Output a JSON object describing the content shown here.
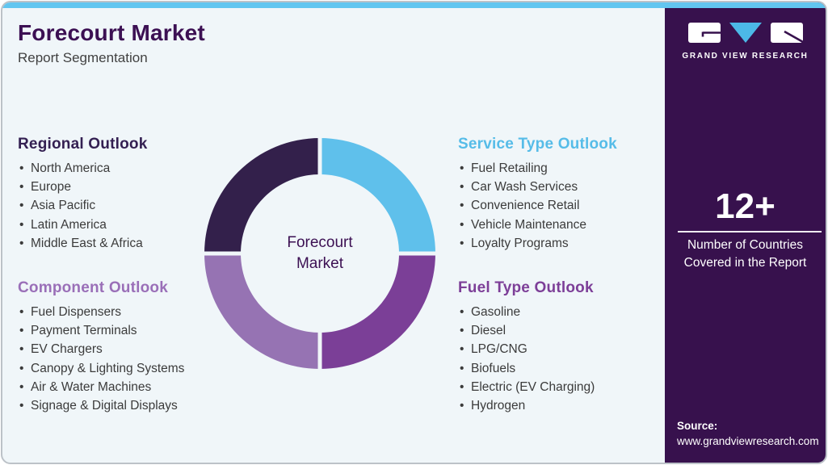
{
  "theme": {
    "accent_blue": "#62c6f0",
    "logo_blue": "#4cb9e7",
    "sidebar_bg": "#37114d",
    "main_bg": "#f0f6f9",
    "title_purple": "#3c1053",
    "border_gray": "#bcc2c8"
  },
  "header": {
    "title": "Forecourt Market",
    "subtitle": "Report Segmentation"
  },
  "sections": [
    {
      "title": "Regional Outlook",
      "color": "#342052",
      "items": [
        "North America",
        "Europe",
        "Asia Pacific",
        "Latin America",
        "Middle East & Africa"
      ]
    },
    {
      "title": "Component Outlook",
      "color": "#9a6fb8",
      "items": [
        "Fuel Dispensers",
        "Payment Terminals",
        "EV Chargers",
        "Canopy & Lighting Systems",
        "Air & Water Machines",
        "Signage & Digital Displays"
      ]
    },
    {
      "title": "Service Type Outlook",
      "color": "#56bce8",
      "items": [
        "Fuel Retailing",
        "Car Wash Services",
        "Convenience Retail",
        "Vehicle Maintenance",
        "Loyalty Programs"
      ]
    },
    {
      "title": "Fuel Type Outlook",
      "color": "#7d3f98",
      "items": [
        "Gasoline",
        "Diesel",
        "LPG/CNG",
        "Biofuels",
        "Electric (EV Charging)",
        "Hydrogen"
      ]
    }
  ],
  "chart_data": {
    "type": "pie",
    "title": "Forecourt Market report segmentation donut",
    "center_label": "Forecourt Market",
    "gap_color": "#f0f6f9",
    "segments": [
      {
        "name": "Service Type Outlook",
        "value": 25,
        "color": "#5fc0eb"
      },
      {
        "name": "Fuel Type Outlook",
        "value": 25,
        "color": "#7b3f97"
      },
      {
        "name": "Component Outlook",
        "value": 25,
        "color": "#9673b3"
      },
      {
        "name": "Regional Outlook",
        "value": 25,
        "color": "#33204b"
      }
    ]
  },
  "brand": {
    "logo_text": "GRAND VIEW RESEARCH"
  },
  "sidebar": {
    "stat_value": "12+",
    "stat_caption": "Number of Countries Covered in the Report",
    "source_label": "Source:",
    "source_url": "www.grandviewresearch.com"
  }
}
